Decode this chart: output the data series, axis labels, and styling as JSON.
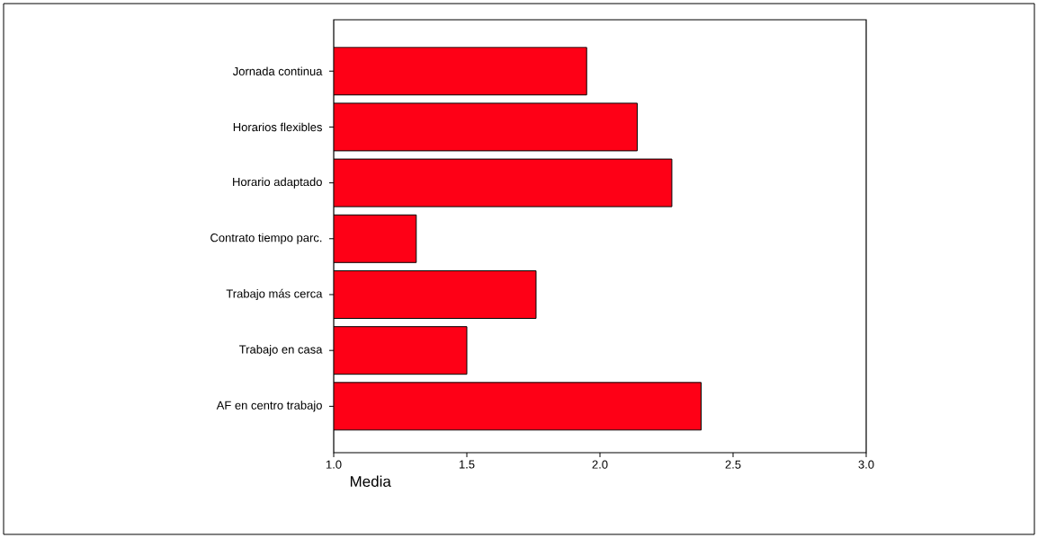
{
  "chart_data": {
    "type": "bar",
    "orientation": "horizontal",
    "categories": [
      "Jornada continua",
      "Horarios flexibles",
      "Horario adaptado",
      "Contrato tiempo parc.",
      "Trabajo más cerca",
      "Trabajo en casa",
      "AF en centro trabajo"
    ],
    "values": [
      1.95,
      2.14,
      2.27,
      1.31,
      1.76,
      1.5,
      2.38
    ],
    "color": "#fe0016",
    "xlim": [
      1.0,
      3.0
    ],
    "xticks": [
      {
        "value": 1.0,
        "label": "1.0"
      },
      {
        "value": 1.5,
        "label": "1.5"
      },
      {
        "value": 2.0,
        "label": "2.0"
      },
      {
        "value": 2.5,
        "label": "2.5"
      },
      {
        "value": 3.0,
        "label": "3.0"
      }
    ],
    "xlabel": "Media"
  }
}
